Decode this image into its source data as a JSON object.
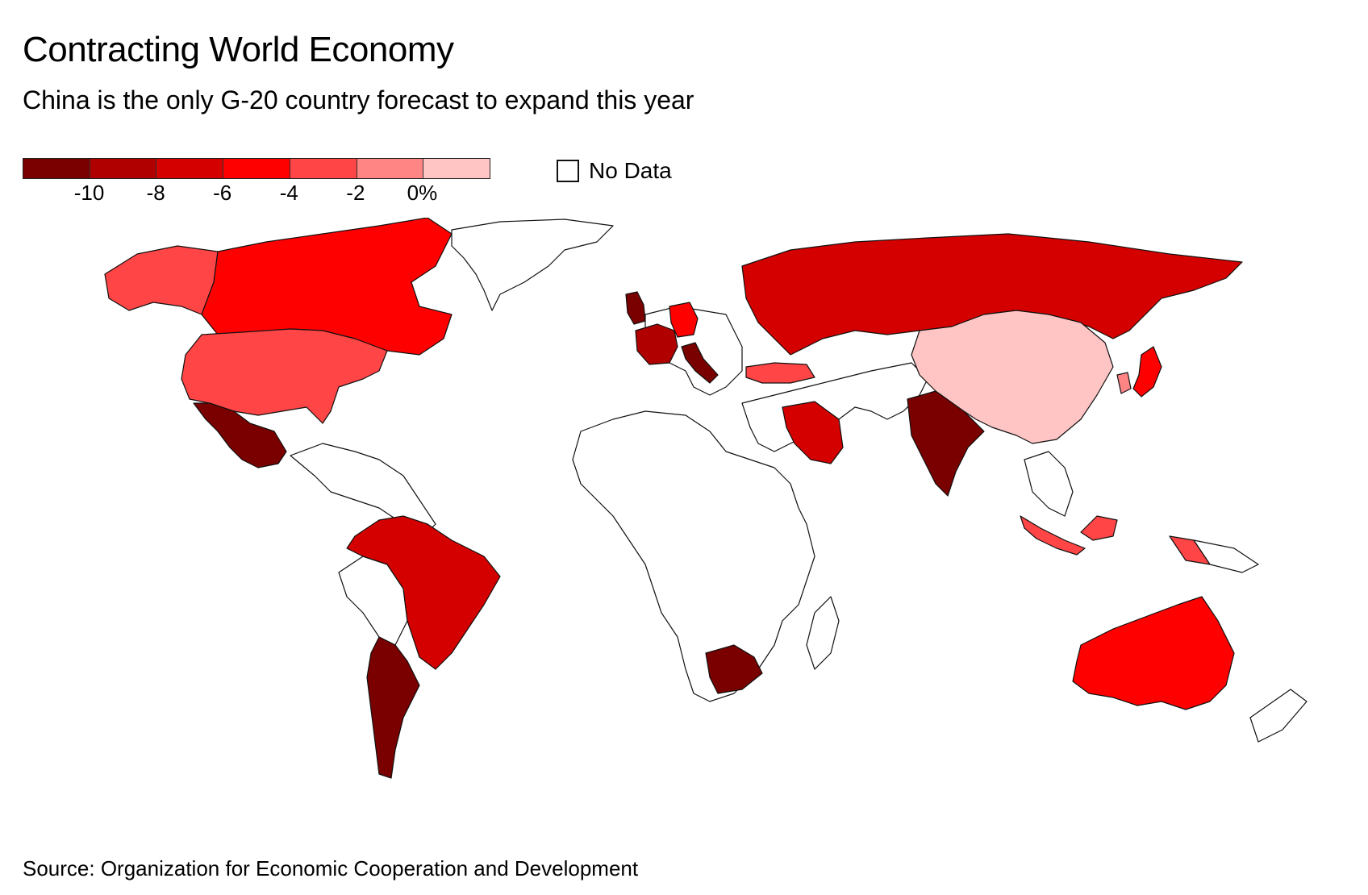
{
  "header": {
    "title": "Contracting World Economy",
    "subtitle": "China is the only G-20 country forecast to expand this year"
  },
  "legend": {
    "colors": [
      "#7a0000",
      "#b00000",
      "#d40000",
      "#ff0000",
      "#ff4545",
      "#ff8585",
      "#ffc4c4"
    ],
    "ticks": [
      "-10",
      "-8",
      "-6",
      "-4",
      "-2",
      "0%"
    ],
    "no_data_label": "No Data",
    "no_data_color": "#ffffff"
  },
  "source": "Source: Organization for Economic Cooperation and Development",
  "map_data": {
    "type": "choropleth",
    "metric": "forecast growth (%)",
    "countries": [
      {
        "name": "Canada",
        "bin": 3
      },
      {
        "name": "Alaska (US)",
        "bin": 4
      },
      {
        "name": "United States",
        "bin": 4
      },
      {
        "name": "Mexico",
        "bin": 0
      },
      {
        "name": "Brazil",
        "bin": 2
      },
      {
        "name": "Argentina",
        "bin": 0
      },
      {
        "name": "United Kingdom",
        "bin": 0
      },
      {
        "name": "France",
        "bin": 1
      },
      {
        "name": "Italy",
        "bin": 0
      },
      {
        "name": "Germany",
        "bin": 3
      },
      {
        "name": "Russia",
        "bin": 2
      },
      {
        "name": "Turkey",
        "bin": 4
      },
      {
        "name": "Saudi Arabia",
        "bin": 2
      },
      {
        "name": "India",
        "bin": 0
      },
      {
        "name": "China",
        "bin": 6
      },
      {
        "name": "South Korea",
        "bin": 5
      },
      {
        "name": "Japan",
        "bin": 3
      },
      {
        "name": "Indonesia",
        "bin": 4
      },
      {
        "name": "Australia",
        "bin": 3
      },
      {
        "name": "South Africa",
        "bin": 0
      }
    ]
  }
}
